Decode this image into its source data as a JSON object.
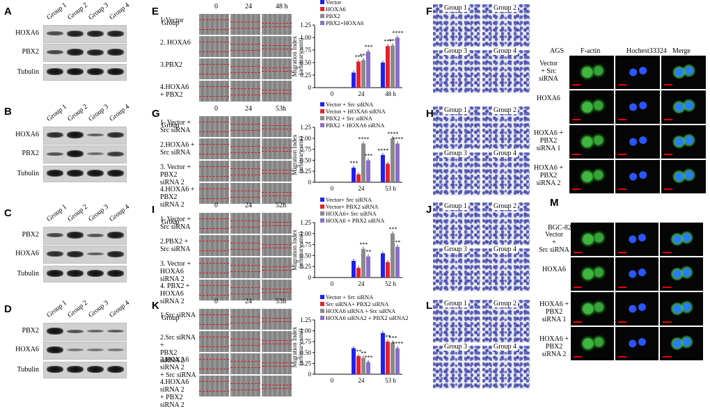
{
  "panels": {
    "A": "A",
    "B": "B",
    "C": "C",
    "D": "D",
    "E": "E",
    "F": "F",
    "G": "G",
    "H": "H",
    "I": "I",
    "J": "J",
    "K": "K",
    "L": "L",
    "M": "M"
  },
  "groups": [
    "Group 1",
    "Group 2",
    "Group 3",
    "Group 4"
  ],
  "blot_rows": {
    "A": [
      "HOXA6",
      "PBX2",
      "Tubulin"
    ],
    "B": [
      "HOXA6",
      "PBX2",
      "Tubulin"
    ],
    "C": [
      "PBX2",
      "HOXA6",
      "Tubulin"
    ],
    "D": [
      "PBX2",
      "HOXA6",
      "Tubulin"
    ]
  },
  "wound": {
    "E": {
      "header": "Group",
      "times": [
        "0",
        "24",
        "48 h"
      ],
      "rows": [
        "1:Vector",
        "2. HOXA6",
        "3.PBX2",
        "4.HOXA6\n+ PBX2"
      ]
    },
    "G": {
      "header": "Group",
      "times": [
        "0",
        "24",
        "53h"
      ],
      "rows": [
        "1. Vector +\nSrc siRNA",
        "2.HOXA6 +\nSrc siRNA",
        "3. Vector +\nPBX2 siRNA 2",
        "4.HOXA6 +\nPBX2 siRNA 2"
      ]
    },
    "I": {
      "header": "Group",
      "times": [
        "0",
        "24",
        "52h"
      ],
      "rows": [
        "1. Vector +\nSrc siRNA",
        "2.PBX2 +\nSrc siRNA",
        "3. Vector +\nHOXA6 siRNA 2",
        "4. PBX2 +\nHOXA6 siRNA 2"
      ]
    },
    "K": {
      "header": "Group",
      "times": [
        "0",
        "24",
        "53h"
      ],
      "rows": [
        "1.Src siRNA",
        "2.Src siRNA +\nPBX2 siRNA 2",
        "3.HOXA6 siRNA 2\n+ Src siRNA",
        "4.HOXA6 siRNA 2\n+ PBX2 siRNA 2"
      ]
    }
  },
  "chart_data": [
    {
      "panel": "E",
      "type": "bar",
      "ylabel": "Migration Index\n(arbitrary unit)",
      "ylim": [
        0,
        1.25
      ],
      "yticks": [
        "0",
        "0.25",
        "0.50",
        "0.75",
        "1.00",
        "1.25"
      ],
      "categories": [
        "0",
        "24",
        "48 h"
      ],
      "series": [
        {
          "name": "Vector",
          "color": "#1f1ff0",
          "values": [
            0,
            0.3,
            0.5
          ],
          "labels": [
            "",
            "",
            ""
          ]
        },
        {
          "name": "HOXA6",
          "color": "#e8202a",
          "values": [
            0,
            0.52,
            0.83
          ],
          "labels": [
            "",
            "***",
            "***"
          ]
        },
        {
          "name": "PBX2",
          "color": "#8a8a8a",
          "values": [
            0,
            0.55,
            0.84
          ],
          "labels": [
            "",
            "***",
            "***"
          ]
        },
        {
          "name": "PBX2+HOXA6",
          "color": "#8a6fc8",
          "values": [
            0,
            0.72,
            1.0
          ],
          "labels": [
            "",
            "***",
            "****"
          ]
        }
      ]
    },
    {
      "panel": "G",
      "type": "bar",
      "ylabel": "Migration Index\n(arbitrary unit)",
      "ylim": [
        0,
        1.25
      ],
      "yticks": [
        "0",
        "0.25",
        "0.50",
        "0.75",
        "1.00",
        "1.25"
      ],
      "categories": [
        "0",
        "24",
        "53 h"
      ],
      "series": [
        {
          "name": "Vector + Src siRNA",
          "color": "#1f1ff0",
          "values": [
            0,
            0.33,
            0.62
          ],
          "labels": [
            "",
            "***",
            "****"
          ]
        },
        {
          "name": "Vector + HOXA6 siRNA",
          "color": "#e8202a",
          "values": [
            0,
            0.18,
            0.42
          ],
          "labels": [
            "",
            "",
            ""
          ]
        },
        {
          "name": "PBX2 + Src siRNA",
          "color": "#8a8a8a",
          "values": [
            0,
            0.88,
            1.0
          ],
          "labels": [
            "",
            "****",
            "****"
          ]
        },
        {
          "name": "PBX2 + HOXA6 siRNA",
          "color": "#8a6fc8",
          "values": [
            0,
            0.5,
            0.88
          ],
          "labels": [
            "",
            "***",
            "****"
          ]
        }
      ]
    },
    {
      "panel": "I",
      "type": "bar",
      "ylabel": "Migration Index\n(arbitrary unit)",
      "ylim": [
        0,
        1.25
      ],
      "yticks": [
        "0",
        "0.25",
        "0.50",
        "0.75",
        "1.00",
        "1.25"
      ],
      "categories": [
        "0",
        "24",
        "52 h"
      ],
      "series": [
        {
          "name": "Vector+ Src siRNA",
          "color": "#1f1ff0",
          "values": [
            0,
            0.38,
            0.55
          ],
          "labels": [
            "",
            "",
            ""
          ]
        },
        {
          "name": "Vector+ PBX2 siRNA",
          "color": "#e8202a",
          "values": [
            0,
            0.22,
            0.35
          ],
          "labels": [
            "",
            "",
            ""
          ]
        },
        {
          "name": "HOXA6+ Src siRNA",
          "color": "#8a8a8a",
          "values": [
            0,
            0.65,
            1.0
          ],
          "labels": [
            "",
            "***",
            "***"
          ]
        },
        {
          "name": "HOXA6 + PBX2 siRNA",
          "color": "#8a6fc8",
          "values": [
            0,
            0.48,
            0.7
          ],
          "labels": [
            "",
            "**",
            "**"
          ]
        }
      ]
    },
    {
      "panel": "K",
      "type": "bar",
      "ylabel": "Migration Index\n(arbitrary unit)",
      "ylim": [
        0,
        1.25
      ],
      "yticks": [
        "0",
        "0.25",
        "0.50",
        "0.75",
        "1.00",
        "1.25"
      ],
      "categories": [
        "0",
        "24",
        "53 h"
      ],
      "series": [
        {
          "name": "Vector + Src siRNA",
          "color": "#1f1ff0",
          "values": [
            0,
            0.6,
            0.95
          ],
          "labels": [
            "",
            "",
            ""
          ]
        },
        {
          "name": "Src siRNA+ PBX2 siRNA",
          "color": "#e8202a",
          "values": [
            0,
            0.42,
            0.75
          ],
          "labels": [
            "",
            "**",
            "**"
          ]
        },
        {
          "name": "HOXA6 siRNA + Src siRNA",
          "color": "#8a8a8a",
          "values": [
            0,
            0.38,
            0.73
          ],
          "labels": [
            "",
            "**",
            "***"
          ]
        },
        {
          "name": "HOXA6 siRNA2 + PBX2 siRNA2",
          "color": "#8a6fc8",
          "values": [
            0,
            0.28,
            0.6
          ],
          "labels": [
            "",
            "***",
            "****"
          ]
        }
      ]
    }
  ],
  "transwell": {
    "F": [
      "Group 1",
      "Group 2",
      "Group 3",
      "Group 4"
    ],
    "H": [
      "Group 1",
      "Group 2",
      "Group 3",
      "Group 4"
    ],
    "J": [
      "Group 1",
      "Group 2",
      "Group 3",
      "Group 4"
    ],
    "L": [
      "Group 1",
      "Group 2",
      "Group 3",
      "Group 4"
    ]
  },
  "if_panels": {
    "AGS": {
      "cell": "AGS",
      "columns": [
        "F-actin",
        "Hochest33324",
        "Merge"
      ],
      "rows": [
        "Vector\n+ Src\nsiRNA",
        "HOXA6",
        "HOXA6 +\nPBX2\nsiRNA 1",
        "HOXA6 +\nPBX2\nsiRNA 2"
      ]
    },
    "M": {
      "cell": "BGC-823",
      "rows": [
        "Vector\n+\nSrc siRNA",
        "HOXA6",
        "HOXA6 +\nPBX2\nsiRNA 1",
        "HOXA6 +\nPBX2\nsiRNA 2"
      ]
    }
  }
}
